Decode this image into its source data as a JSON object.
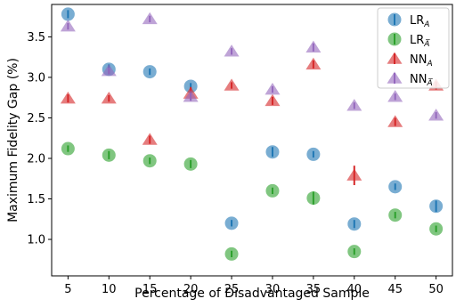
{
  "chart_data": {
    "type": "scatter",
    "xlabel": "Percentage of Disadvantaged Sample",
    "ylabel": "Maximum Fidelity Gap (%)",
    "x": [
      5,
      10,
      15,
      20,
      25,
      30,
      35,
      40,
      45,
      50
    ],
    "xlim": [
      3,
      52
    ],
    "ylim": [
      0.55,
      3.9
    ],
    "yticks": [
      1.0,
      1.5,
      2.0,
      2.5,
      3.0,
      3.5
    ],
    "grid": false,
    "legend_position": "top-right",
    "series": [
      {
        "name": "LR",
        "sub": "A",
        "marker": "circle",
        "color": "#1f77b4",
        "values": [
          3.78,
          3.1,
          3.07,
          2.89,
          1.2,
          2.08,
          2.05,
          1.19,
          1.65,
          1.41
        ],
        "errors": [
          0.05,
          0.06,
          0.04,
          0.04,
          0.04,
          0.06,
          0.04,
          0.05,
          0.04,
          0.07
        ]
      },
      {
        "name": "LR",
        "sub": "A̅",
        "marker": "circle",
        "color": "#2ca02c",
        "values": [
          2.12,
          2.04,
          1.97,
          1.93,
          0.82,
          1.6,
          1.51,
          0.85,
          1.3,
          1.13
        ],
        "errors": [
          0.04,
          0.05,
          0.04,
          0.05,
          0.04,
          0.04,
          0.08,
          0.04,
          0.04,
          0.04
        ]
      },
      {
        "name": "NN",
        "sub": "A",
        "marker": "triangle",
        "color": "#d62728",
        "values": [
          2.74,
          2.74,
          2.23,
          2.8,
          2.9,
          2.71,
          3.16,
          1.79,
          2.45,
          2.9
        ],
        "errors": [
          0.05,
          0.04,
          0.05,
          0.08,
          0.04,
          0.05,
          0.05,
          0.12,
          0.05,
          0.05
        ]
      },
      {
        "name": "NN",
        "sub": "A̅",
        "marker": "triangle",
        "color": "#9467bd",
        "values": [
          3.63,
          3.08,
          3.72,
          2.76,
          3.32,
          2.85,
          3.37,
          2.65,
          2.76,
          2.53
        ],
        "errors": [
          0.04,
          0.04,
          0.04,
          0.05,
          0.04,
          0.04,
          0.05,
          0.04,
          0.04,
          0.04
        ]
      }
    ]
  }
}
